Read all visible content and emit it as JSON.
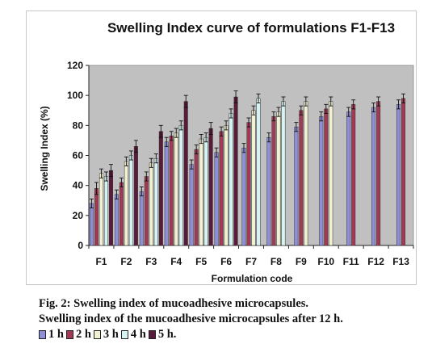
{
  "chart_data": {
    "type": "bar",
    "title": "Swelling Index curve of formulations F1-F13",
    "xlabel": "Formulation code",
    "ylabel": "Swelling Index (%)",
    "ylim": [
      0,
      120
    ],
    "yticks": [
      0,
      20,
      40,
      60,
      80,
      100,
      120
    ],
    "grid": false,
    "plot_background": "#c0c0c0",
    "categories": [
      "F1",
      "F2",
      "F3",
      "F4",
      "F5",
      "F6",
      "F7",
      "F8",
      "F9",
      "F10",
      "F11",
      "F12",
      "F13"
    ],
    "series": [
      {
        "name": "1 h",
        "color": "#8f8fd8",
        "values": [
          28,
          34,
          36,
          69,
          54,
          62,
          65,
          72,
          79,
          86,
          89,
          92,
          94
        ],
        "errors": [
          3,
          3,
          3,
          3,
          3,
          3,
          3,
          3,
          3,
          3,
          3,
          3,
          3
        ]
      },
      {
        "name": "2 h",
        "color": "#a33a55",
        "values": [
          38,
          42,
          46,
          73,
          64,
          76,
          82,
          86,
          90,
          91,
          94,
          96,
          98
        ],
        "errors": [
          4,
          3,
          3,
          3,
          3,
          3,
          3,
          3,
          3,
          3,
          3,
          3,
          3
        ]
      },
      {
        "name": "3 h",
        "color": "#f2f2d2",
        "values": [
          48,
          56,
          55,
          75,
          71,
          80,
          90,
          89,
          96,
          96,
          null,
          null,
          null
        ],
        "errors": [
          3,
          3,
          3,
          3,
          3,
          3,
          3,
          3,
          3,
          3,
          null,
          null,
          null
        ]
      },
      {
        "name": "4 h",
        "color": "#d6f3f3",
        "values": [
          46,
          60,
          58,
          80,
          72,
          88,
          98,
          96,
          null,
          null,
          null,
          null,
          null
        ],
        "errors": [
          3,
          3,
          3,
          3,
          3,
          3,
          3,
          3,
          null,
          null,
          null,
          null,
          null
        ]
      },
      {
        "name": "5 h",
        "color": "#5a1a3a",
        "values": [
          50,
          66,
          76,
          96,
          78,
          99,
          null,
          null,
          null,
          null,
          null,
          null,
          null
        ],
        "errors": [
          4,
          4,
          4,
          4,
          4,
          4,
          null,
          null,
          null,
          null,
          null,
          null,
          null
        ]
      }
    ]
  },
  "caption": {
    "line1": "Fig. 2: Swelling index of mucoadhesive microcapsules.",
    "line2": "Swelling index of the mucoadhesive microcapsules after 12 h.",
    "legend": [
      "1 h",
      "2 h",
      "3 h",
      "4 h",
      "5 h."
    ]
  }
}
